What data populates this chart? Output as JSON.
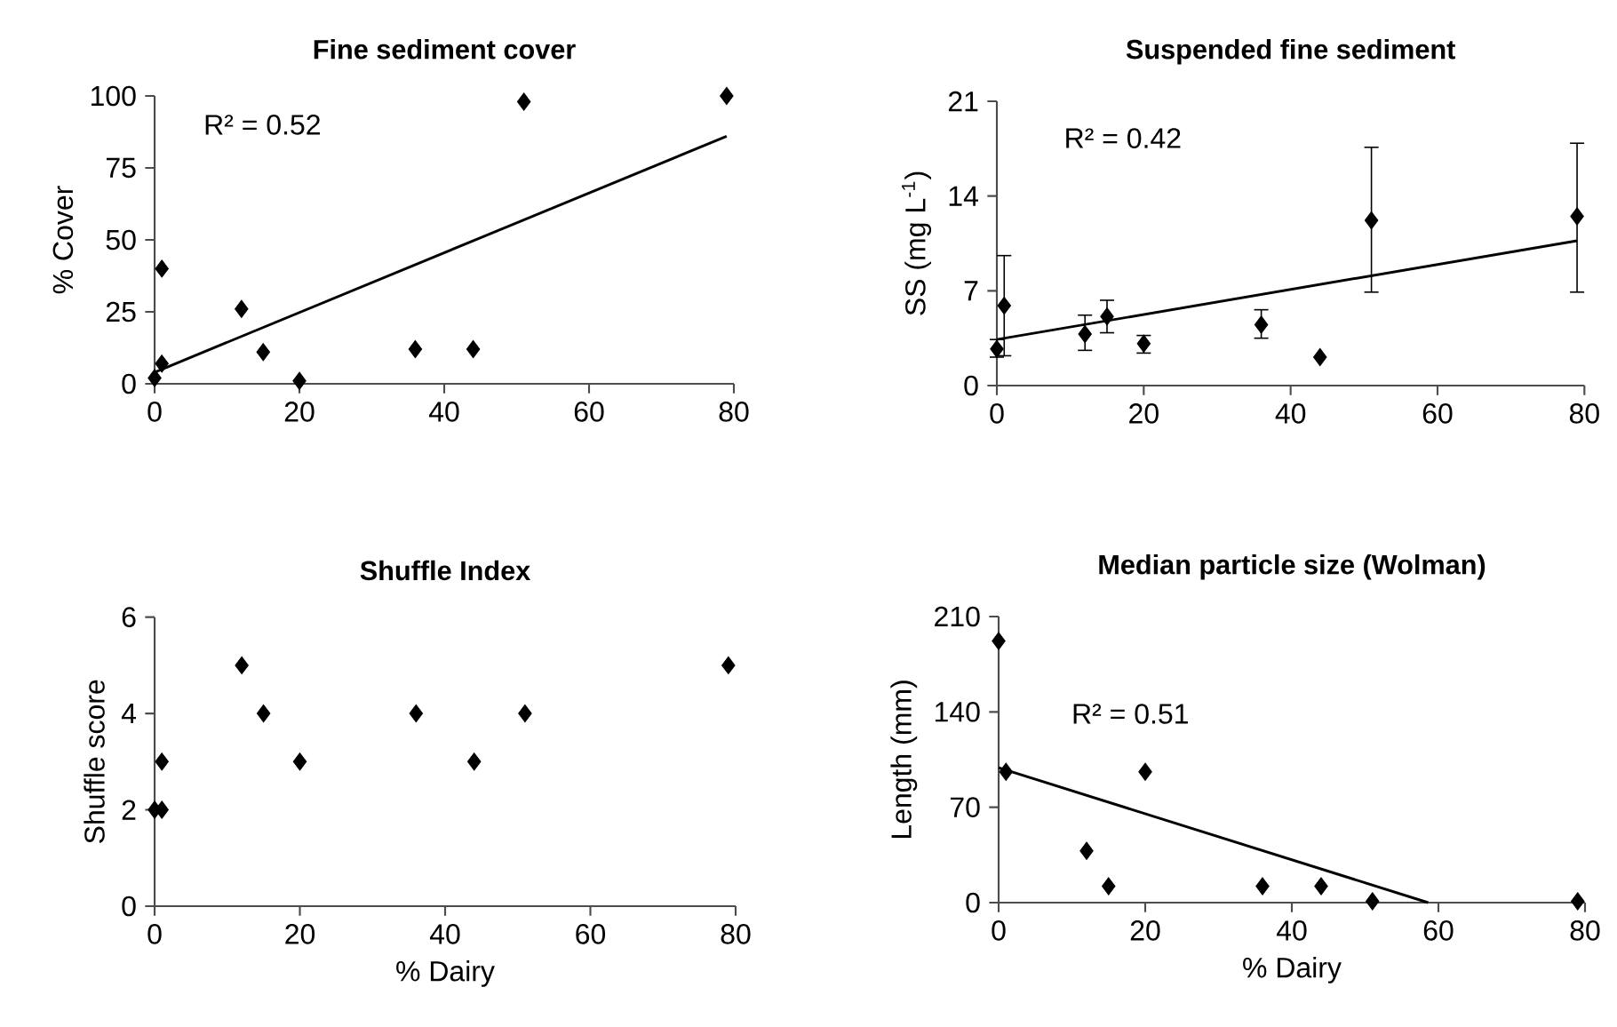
{
  "chart_data": [
    {
      "type": "scatter",
      "title": "Fine sediment cover",
      "ylabel": "% Cover",
      "xlim": [
        0,
        80
      ],
      "xticks": [
        0,
        20,
        40,
        60,
        80
      ],
      "ylim": [
        0,
        100
      ],
      "yticks": [
        0,
        25,
        50,
        75,
        100
      ],
      "annotations": [
        "R² = 0.52"
      ],
      "series": [
        {
          "marker": "diamond",
          "color": "#000000",
          "x": [
            0,
            1,
            1,
            12,
            15,
            20,
            36,
            44,
            51,
            79
          ],
          "values": [
            2,
            7,
            40,
            26,
            11,
            1,
            12,
            12,
            98,
            100
          ]
        },
        {
          "type": "line",
          "marker": "none",
          "color": "#000000",
          "x": [
            0,
            79
          ],
          "values": [
            4,
            86
          ]
        }
      ]
    },
    {
      "type": "scatter",
      "title": "Suspended fine sediment",
      "ylabel": "SS (mg L$^{-1}$)",
      "xlim": [
        0,
        80
      ],
      "xticks": [
        0,
        20,
        40,
        60,
        80
      ],
      "ylim": [
        0,
        21
      ],
      "yticks": [
        0,
        7,
        14,
        21
      ],
      "annotations": [
        "R² = 0.42"
      ],
      "series": [
        {
          "marker": "diamond",
          "color": "#000000",
          "x": [
            0,
            1,
            12,
            15,
            20,
            36,
            44,
            51,
            79
          ],
          "values": [
            2.7,
            5.9,
            3.8,
            5.1,
            3.1,
            4.5,
            2.1,
            12.2,
            12.5
          ],
          "errors": [
            [
              2.1,
              3.4
            ],
            [
              2.2,
              9.6
            ],
            [
              2.6,
              5.2
            ],
            [
              3.9,
              6.3
            ],
            [
              2.4,
              3.7
            ],
            [
              3.5,
              5.6
            ],
            null,
            [
              6.9,
              17.6
            ],
            [
              6.9,
              17.9
            ]
          ]
        },
        {
          "type": "line",
          "marker": "none",
          "color": "#000000",
          "x": [
            0,
            79
          ],
          "values": [
            3.4,
            10.7
          ]
        }
      ]
    },
    {
      "type": "scatter",
      "title": "Shuffle Index",
      "xlabel": "% Dairy",
      "ylabel": "Shuffle score",
      "xlim": [
        0,
        80
      ],
      "xticks": [
        0,
        20,
        40,
        60,
        80
      ],
      "ylim": [
        0,
        6
      ],
      "yticks": [
        0,
        2,
        4,
        6
      ],
      "series": [
        {
          "marker": "diamond",
          "color": "#000000",
          "x": [
            0,
            1,
            1,
            12,
            15,
            20,
            36,
            44,
            51,
            79
          ],
          "values": [
            2,
            2,
            3,
            5,
            4,
            3,
            4,
            3,
            4,
            5
          ]
        }
      ]
    },
    {
      "type": "scatter",
      "title": "Median particle size (Wolman)",
      "xlabel": "% Dairy",
      "ylabel": "Length (mm)",
      "xlim": [
        0,
        80
      ],
      "xticks": [
        0,
        20,
        40,
        60,
        80
      ],
      "ylim": [
        0,
        210
      ],
      "yticks": [
        0,
        70,
        140,
        210
      ],
      "annotations": [
        "R² = 0.51"
      ],
      "series": [
        {
          "marker": "diamond",
          "color": "#000000",
          "x": [
            0,
            1,
            12,
            15,
            20,
            36,
            44,
            51,
            79
          ],
          "values": [
            192,
            96,
            38,
            12,
            96,
            12,
            12,
            1,
            1
          ]
        },
        {
          "type": "line",
          "marker": "none",
          "color": "#000000",
          "x": [
            0,
            58.6
          ],
          "values": [
            99,
            0
          ]
        }
      ]
    }
  ]
}
